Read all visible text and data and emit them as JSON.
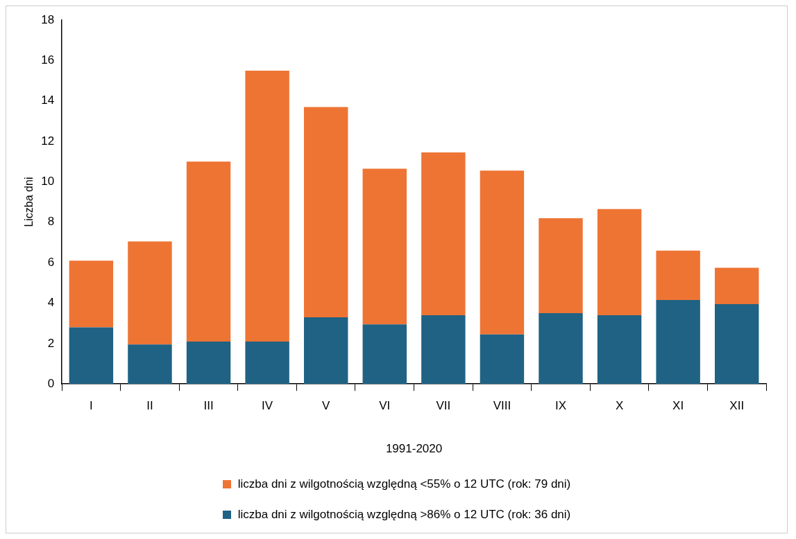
{
  "chart_data": {
    "type": "bar",
    "stacked": true,
    "ylabel": "Liczba dni",
    "xlabel": "1991-2020",
    "categories": [
      "I",
      "II",
      "III",
      "IV",
      "V",
      "VI",
      "VII",
      "VIII",
      "IX",
      "X",
      "XI",
      "XII"
    ],
    "series": [
      {
        "name": "liczba dni z wilgotnością względną >86% o 12 UTC (rok: 36 dni)",
        "color": "#1f6284",
        "values": [
          2.8,
          1.95,
          2.1,
          2.1,
          3.3,
          2.95,
          3.4,
          2.45,
          3.5,
          3.4,
          4.15,
          3.95
        ]
      },
      {
        "name": "liczba dni z wilgotnością względną <55% o 12 UTC (rok: 79 dni)",
        "color": "#ee7434",
        "values": [
          3.3,
          5.1,
          8.9,
          13.4,
          10.4,
          7.7,
          8.05,
          8.1,
          4.7,
          5.25,
          2.45,
          1.8
        ]
      }
    ],
    "ylim": [
      0,
      18
    ],
    "yticks": [
      0,
      2,
      4,
      6,
      8,
      10,
      12,
      14,
      16,
      18
    ],
    "grid": false,
    "legend": "bottom"
  }
}
